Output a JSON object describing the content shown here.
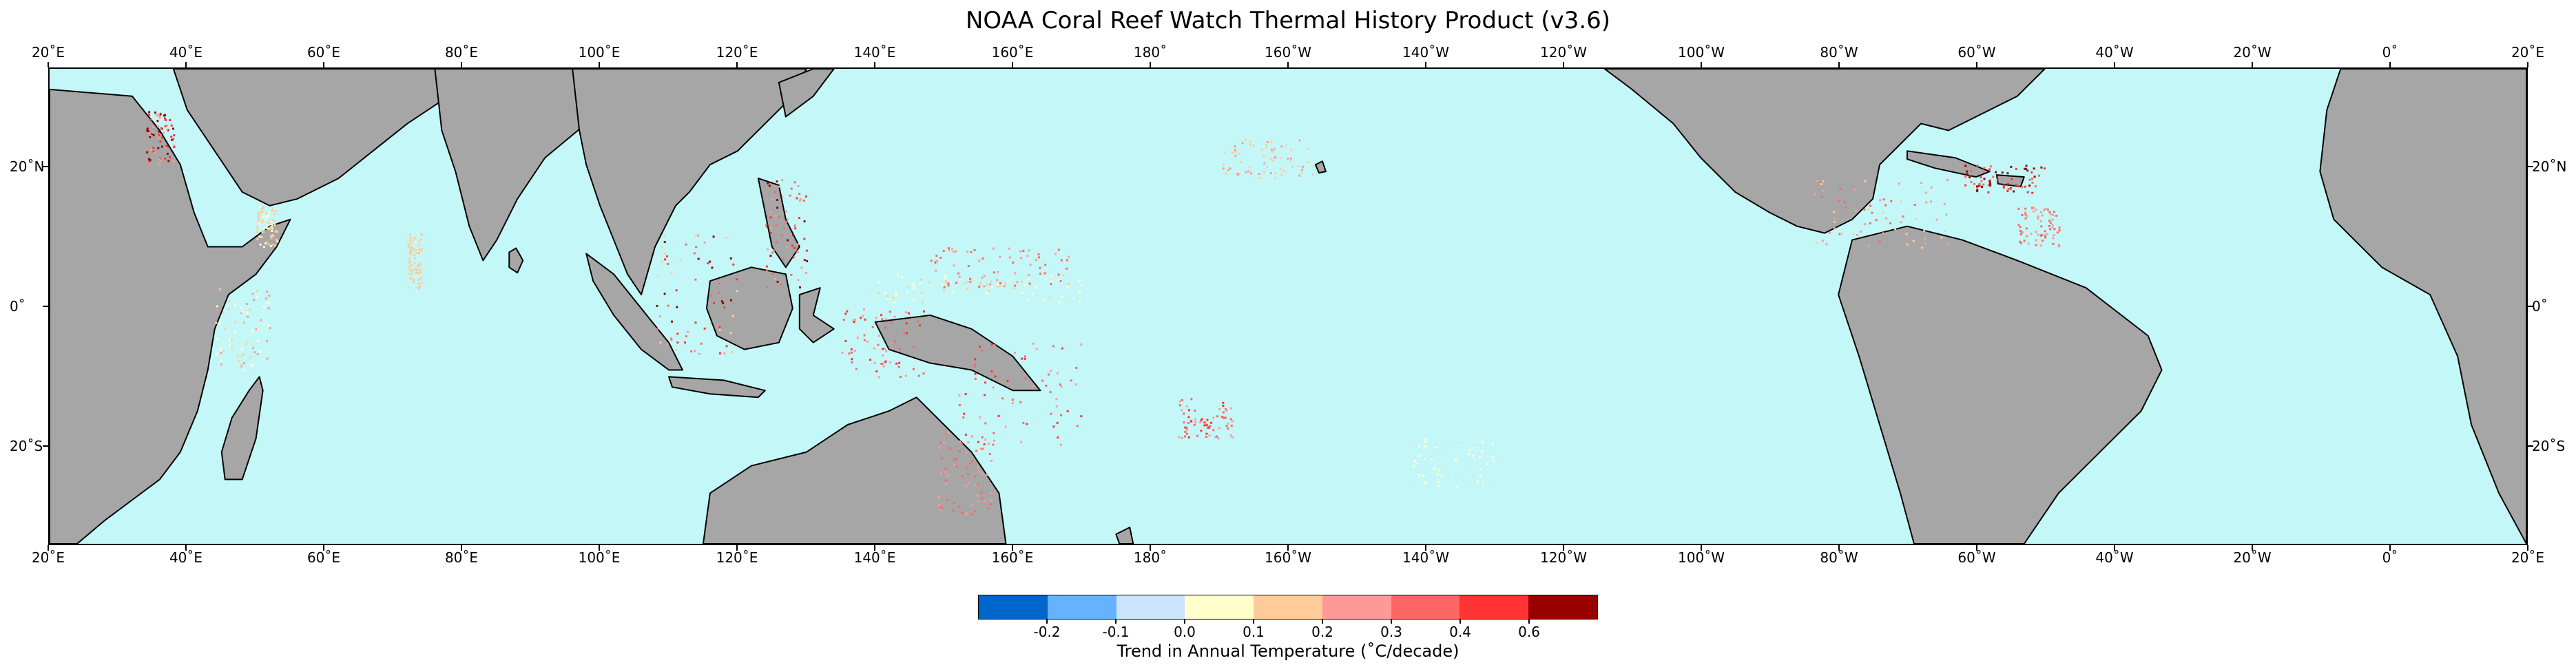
{
  "title": "NOAA Coral Reef Watch Thermal History Product (v3.6)",
  "longitude_ticks": [
    "20˚E",
    "40˚E",
    "60˚E",
    "80˚E",
    "100˚E",
    "120˚E",
    "140˚E",
    "160˚E",
    "180˚",
    "160˚W",
    "140˚W",
    "120˚W",
    "100˚W",
    "80˚W",
    "60˚W",
    "40˚W",
    "20˚W",
    "0˚",
    "20˚E"
  ],
  "latitude_ticks": [
    "20˚N",
    "0˚",
    "20˚S"
  ],
  "colorbar": {
    "colors": [
      "#0066cc",
      "#66b2ff",
      "#cce5ff",
      "#ffffcc",
      "#ffcc99",
      "#ff9999",
      "#ff6666",
      "#ff3333",
      "#990000"
    ],
    "tick_labels": [
      "-0.2",
      "-0.1",
      "0.0",
      "0.1",
      "0.2",
      "0.3",
      "0.4",
      "0.6"
    ],
    "label": "Trend in Annual Temperature (˚C/decade)"
  },
  "map": {
    "ocean_color": "#c4f8f8",
    "land_color": "#a6a6a6",
    "coastline_color": "#000000"
  }
}
